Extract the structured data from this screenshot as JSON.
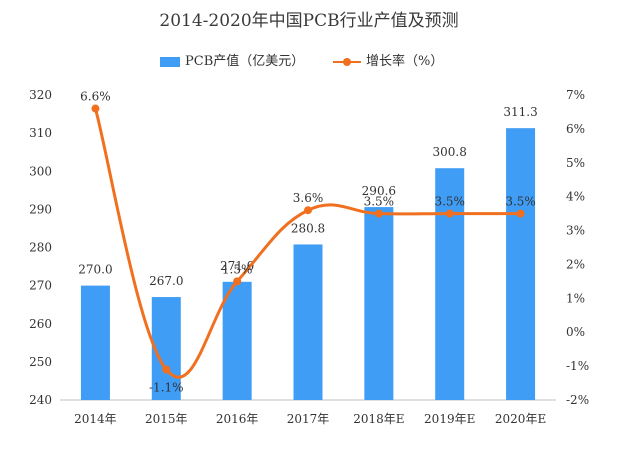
{
  "chart_data": {
    "type": "bar+line",
    "title": "2014-2020年中国PCB行业产值及预测",
    "categories": [
      "2014年",
      "2015年",
      "2016年",
      "2017年",
      "2018年E",
      "2019年E",
      "2020年E"
    ],
    "series": [
      {
        "name": "PCB产值（亿美元）",
        "type": "bar",
        "axis": "left",
        "color": "#3f9df5",
        "values": [
          270.0,
          267.0,
          271.0,
          280.8,
          290.6,
          300.8,
          311.3
        ],
        "labels": [
          "270.0",
          "267.0",
          "271.0",
          "280.8",
          "290.6",
          "300.8",
          "311.3"
        ]
      },
      {
        "name": "增长率（%）",
        "type": "line",
        "axis": "right",
        "color": "#f07020",
        "values": [
          6.6,
          -1.1,
          1.5,
          3.6,
          3.5,
          3.5,
          3.5
        ],
        "labels": [
          "6.6%",
          "-1.1%",
          "1.5%",
          "3.6%",
          "3.5%",
          "3.5%",
          "3.5%"
        ]
      }
    ],
    "y_left": {
      "ylim": [
        240,
        320
      ],
      "ticks": [
        "240",
        "250",
        "260",
        "270",
        "280",
        "290",
        "300",
        "310",
        "320"
      ]
    },
    "y_right": {
      "ylim": [
        -2,
        7
      ],
      "ticks": [
        "-2%",
        "-1%",
        "0%",
        "1%",
        "2%",
        "3%",
        "4%",
        "5%",
        "6%",
        "7%"
      ]
    },
    "grid": false,
    "legend": "top-center"
  }
}
